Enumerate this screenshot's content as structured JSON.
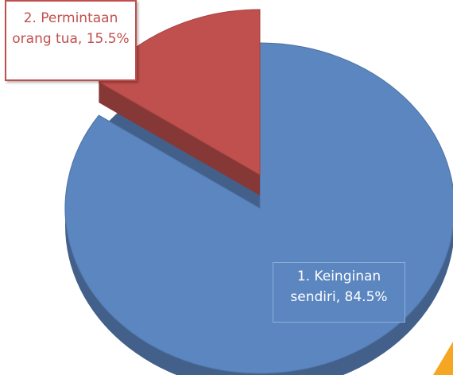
{
  "chart_data": {
    "type": "pie",
    "values": [
      84.5,
      15.5
    ],
    "value_labels": [
      "1. Keinginan sendiri, 84.5%",
      "2. Permintaan orang tua, 15.5%"
    ],
    "colors": [
      "#5b86c0",
      "#c0504d"
    ]
  }
}
